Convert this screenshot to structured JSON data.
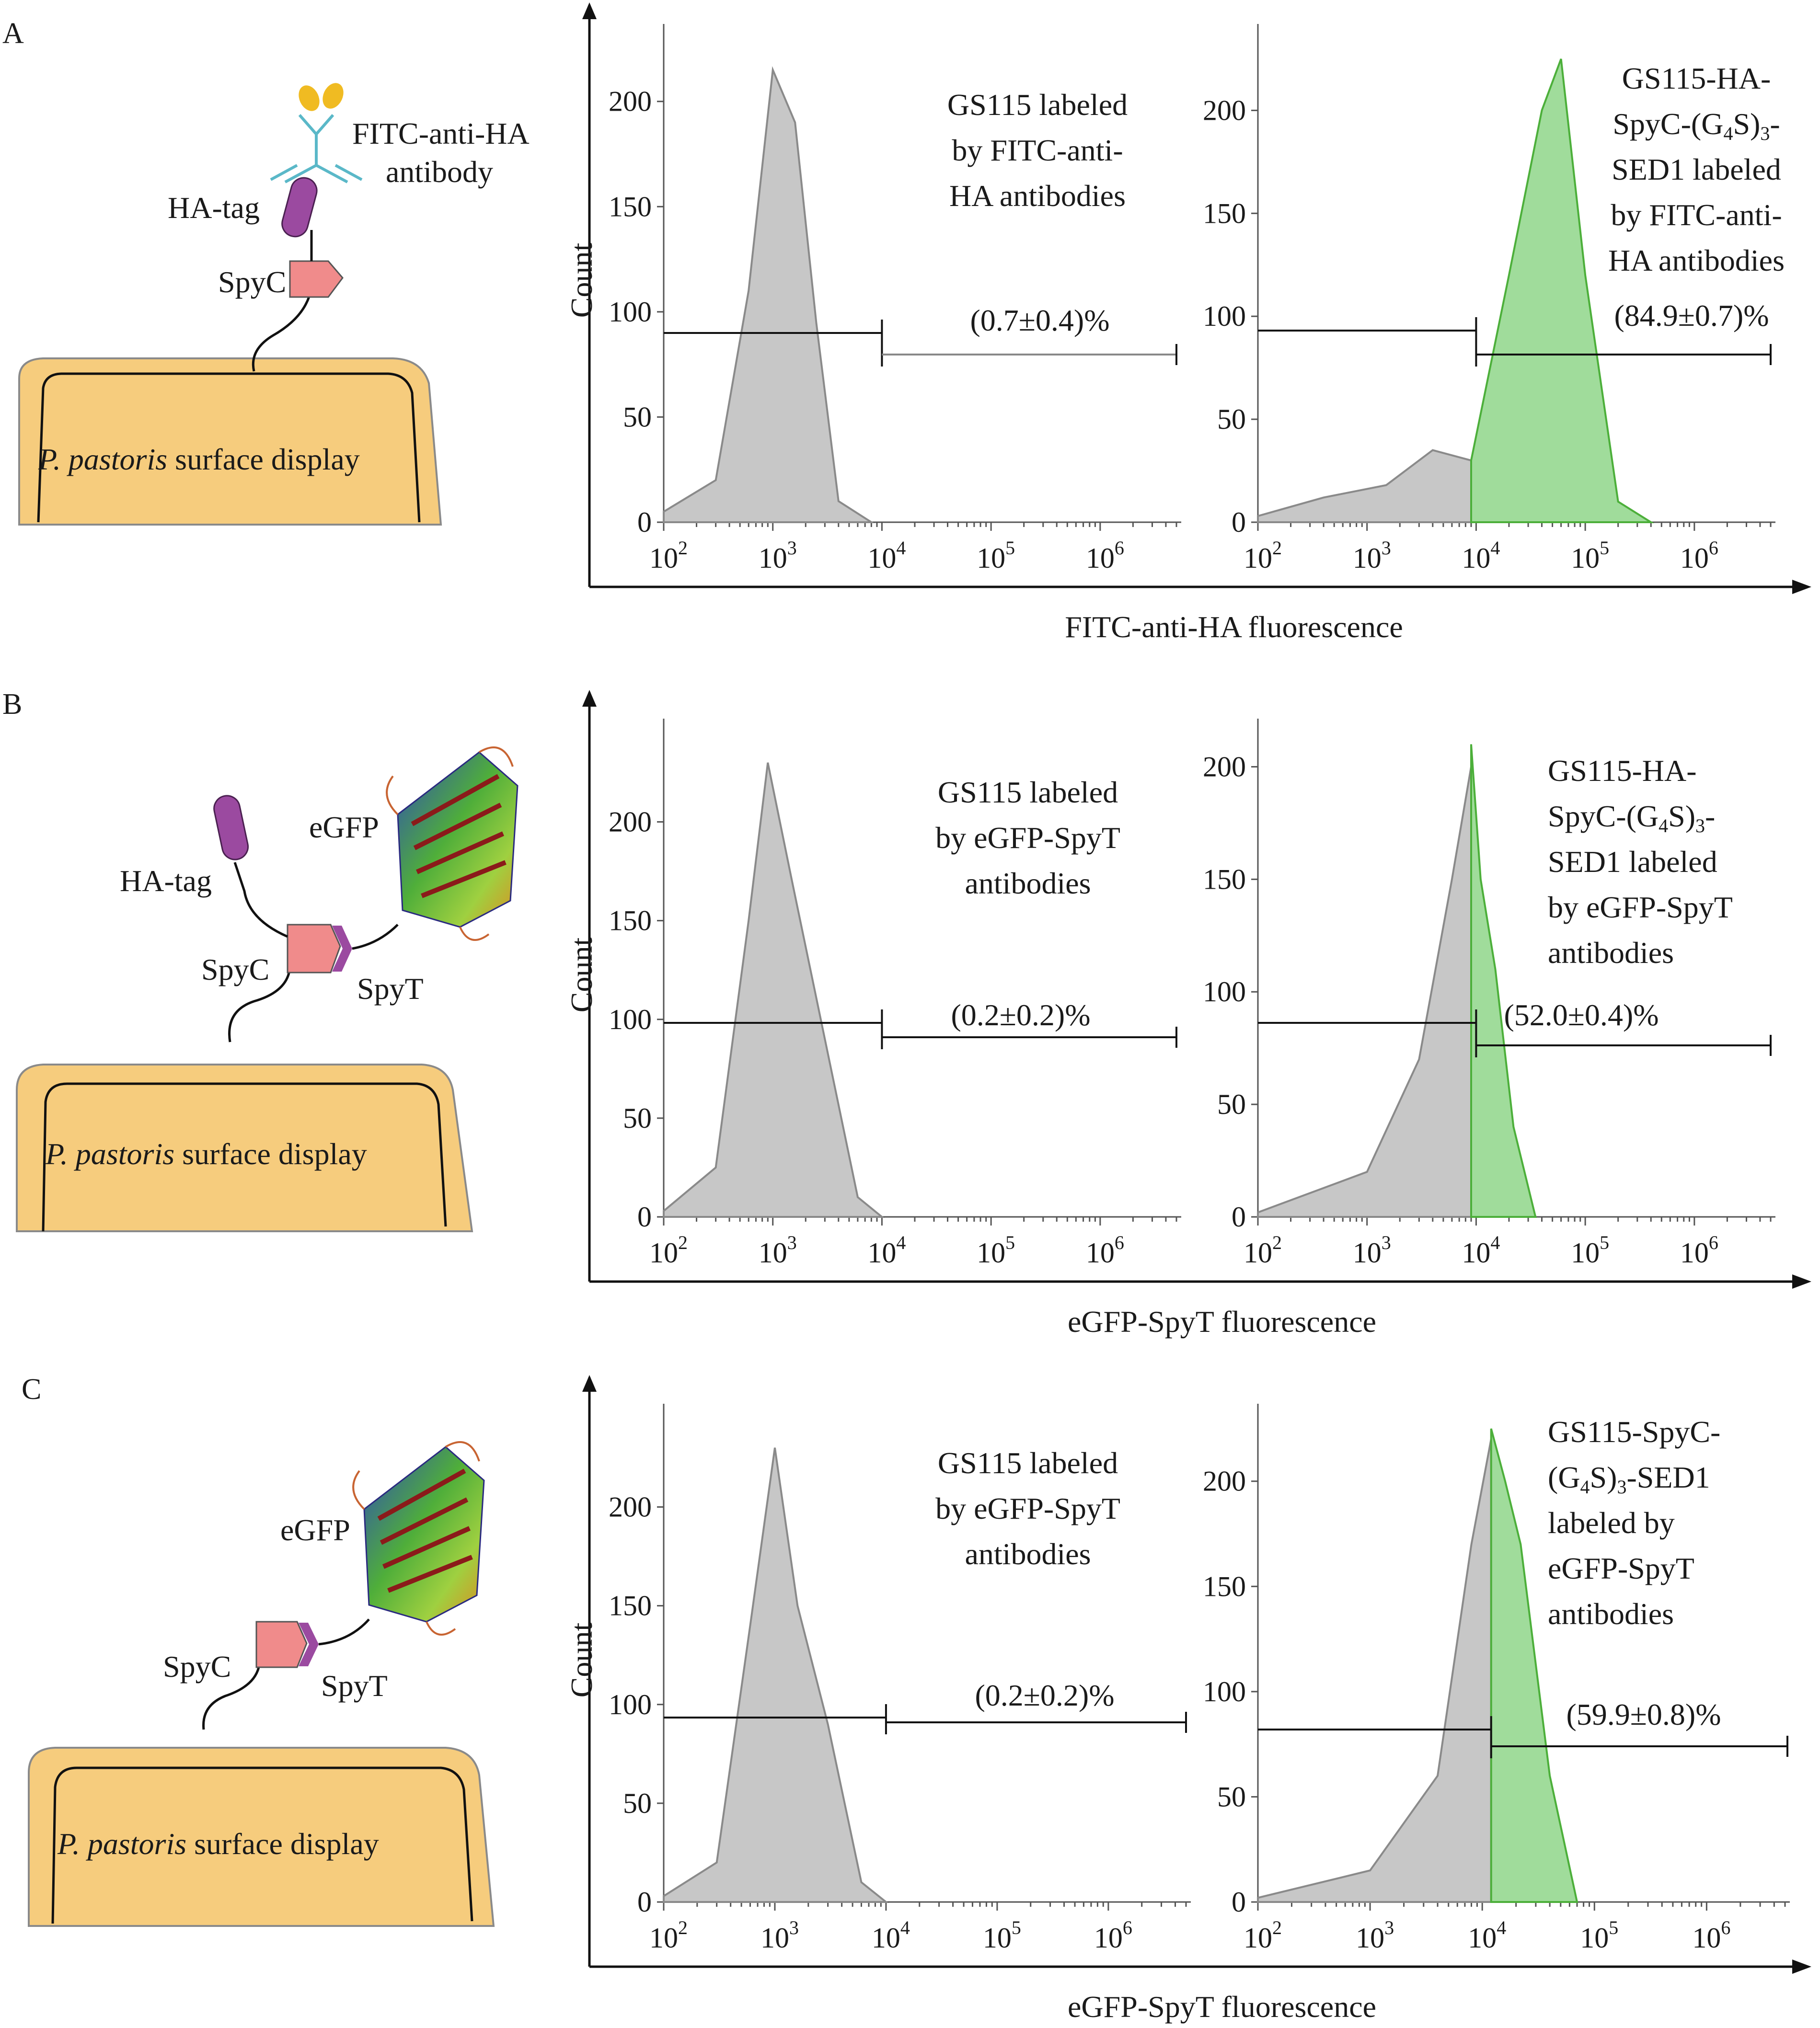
{
  "figure": {
    "rows": [
      {
        "letter": "A",
        "schematic": {
          "labels": [
            "FITC-anti-HA",
            "antibody",
            "HA-tag",
            "SpyC"
          ],
          "cell_label_italic": "P. pastoris",
          "cell_label_rest": " surface display"
        },
        "shared_xlabel": "FITC-anti-HA fluorescence",
        "charts": [
          {
            "ylabel": "Count",
            "ymax": 230,
            "yticks": [
              0,
              50,
              100,
              150,
              200
            ],
            "xticks": [
              "2",
              "3",
              "4",
              "5",
              "6"
            ],
            "annotation": [
              "GS115 labeled",
              "by FITC-anti-",
              "HA antibodies"
            ],
            "percent": "(0.7±0.4)%"
          },
          {
            "ylabel": "",
            "ymax": 235,
            "yticks": [
              0,
              50,
              100,
              150,
              200
            ],
            "xticks": [
              "2",
              "3",
              "4",
              "5",
              "6"
            ],
            "annotation": [
              "GS115-HA-",
              "SpyC-(G4S)3-",
              "SED1 labeled",
              "by FITC-anti-",
              "HA antibodies"
            ],
            "percent": "(84.9±0.7)%"
          }
        ]
      },
      {
        "letter": "B",
        "schematic": {
          "labels": [
            "eGFP",
            "HA-tag",
            "SpyC",
            "SpyT"
          ],
          "cell_label_italic": "P. pastoris",
          "cell_label_rest": " surface display"
        },
        "shared_xlabel": "eGFP-SpyT fluorescence",
        "charts": [
          {
            "ylabel": "Count",
            "ymax": 245,
            "yticks": [
              0,
              50,
              100,
              150,
              200
            ],
            "xticks": [
              "2",
              "3",
              "4",
              "5",
              "6"
            ],
            "annotation": [
              "GS115 labeled",
              "by eGFP-SpyT",
              "antibodies"
            ],
            "percent": "(0.2±0.2)%"
          },
          {
            "ylabel": "",
            "ymax": 215,
            "yticks": [
              0,
              50,
              100,
              150,
              200
            ],
            "xticks": [
              "2",
              "3",
              "4",
              "5",
              "6"
            ],
            "annotation": [
              "GS115-HA-",
              "SpyC-(G4S)3-",
              "SED1 labeled",
              "by eGFP-SpyT",
              "antibodies"
            ],
            "percent": "(52.0±0.4)%"
          }
        ]
      },
      {
        "letter": "C",
        "schematic": {
          "labels": [
            "eGFP",
            "SpyC",
            "SpyT"
          ],
          "cell_label_italic": "P. pastoris",
          "cell_label_rest": " surface display"
        },
        "shared_xlabel": "eGFP-SpyT fluorescence",
        "charts": [
          {
            "ylabel": "Count",
            "ymax": 245,
            "yticks": [
              0,
              50,
              100,
              150,
              200
            ],
            "xticks": [
              "2",
              "3",
              "4",
              "5",
              "6"
            ],
            "annotation": [
              "GS115 labeled",
              "by eGFP-SpyT",
              "antibodies"
            ],
            "percent": "(0.2±0.2)%"
          },
          {
            "ylabel": "",
            "ymax": 230,
            "yticks": [
              0,
              50,
              100,
              150,
              200
            ],
            "xticks": [
              "2",
              "3",
              "4",
              "5",
              "6"
            ],
            "annotation": [
              "GS115-SpyC-",
              "(G4S)3-SED1",
              "labeled by",
              "eGFP-SpyT",
              "antibodies"
            ],
            "percent": "(59.9±0.8)%"
          }
        ]
      }
    ]
  },
  "chart_data": [
    {
      "type": "area",
      "panel": "A-left",
      "ylabel": "Count",
      "xscale": "log",
      "xrange": [
        100,
        5000000
      ],
      "ylim": [
        0,
        230
      ],
      "series": [
        {
          "x": [
            100,
            300,
            600,
            1000,
            1600,
            2500,
            4000,
            8000
          ],
          "values": [
            5,
            20,
            110,
            215,
            190,
            95,
            10,
            0
          ],
          "color": "#bdbdbd"
        }
      ],
      "gate": {
        "x_threshold": 10000,
        "percent": "(0.7±0.4)%"
      }
    },
    {
      "type": "area",
      "panel": "A-right",
      "xscale": "log",
      "xrange": [
        100,
        5000000
      ],
      "ylim": [
        0,
        235
      ],
      "series": [
        {
          "x": [
            100,
            400,
            1500,
            4000,
            9000
          ],
          "values": [
            3,
            12,
            18,
            35,
            30
          ],
          "color": "#bdbdbd"
        },
        {
          "x": [
            9000,
            20000,
            40000,
            60000,
            100000,
            200000,
            400000
          ],
          "values": [
            30,
            120,
            200,
            225,
            120,
            10,
            0
          ],
          "color": "#8fd68a"
        }
      ],
      "gate": {
        "x_threshold": 10000,
        "percent": "(84.9±0.7)%"
      }
    },
    {
      "type": "area",
      "panel": "B-left",
      "ylabel": "Count",
      "xscale": "log",
      "xrange": [
        100,
        5000000
      ],
      "ylim": [
        0,
        245
      ],
      "series": [
        {
          "x": [
            100,
            300,
            600,
            900,
            1500,
            3000,
            6000,
            10000
          ],
          "values": [
            3,
            25,
            150,
            230,
            170,
            90,
            10,
            0
          ],
          "color": "#bdbdbd"
        }
      ],
      "gate": {
        "x_threshold": 10000,
        "percent": "(0.2±0.2)%"
      }
    },
    {
      "type": "area",
      "panel": "B-right",
      "xscale": "log",
      "xrange": [
        100,
        5000000
      ],
      "ylim": [
        0,
        215
      ],
      "series": [
        {
          "x": [
            100,
            1000,
            3000,
            6000,
            9000
          ],
          "values": [
            2,
            20,
            70,
            150,
            200
          ],
          "color": "#bdbdbd"
        },
        {
          "x": [
            9000,
            11000,
            15000,
            22000,
            35000
          ],
          "values": [
            210,
            150,
            110,
            40,
            0
          ],
          "color": "#8fd68a"
        }
      ],
      "gate": {
        "x_threshold": 10000,
        "percent": "(52.0±0.4)%"
      }
    },
    {
      "type": "area",
      "panel": "C-left",
      "ylabel": "Count",
      "xscale": "log",
      "xrange": [
        100,
        5000000
      ],
      "ylim": [
        0,
        245
      ],
      "series": [
        {
          "x": [
            100,
            300,
            600,
            1000,
            1600,
            3000,
            6000,
            10000
          ],
          "values": [
            3,
            20,
            140,
            230,
            150,
            90,
            10,
            0
          ],
          "color": "#bdbdbd"
        }
      ],
      "gate": {
        "x_threshold": 10000,
        "percent": "(0.2±0.2)%"
      }
    },
    {
      "type": "area",
      "panel": "C-right",
      "xscale": "log",
      "xrange": [
        100,
        5000000
      ],
      "ylim": [
        0,
        230
      ],
      "series": [
        {
          "x": [
            100,
            1000,
            4000,
            8000,
            12000
          ],
          "values": [
            2,
            15,
            60,
            170,
            220
          ],
          "color": "#bdbdbd"
        },
        {
          "x": [
            12000,
            16000,
            22000,
            40000,
            70000
          ],
          "values": [
            225,
            200,
            170,
            60,
            0
          ],
          "color": "#8fd68a"
        }
      ],
      "gate": {
        "x_threshold": 12000,
        "percent": "(59.9±0.8)%"
      }
    }
  ]
}
